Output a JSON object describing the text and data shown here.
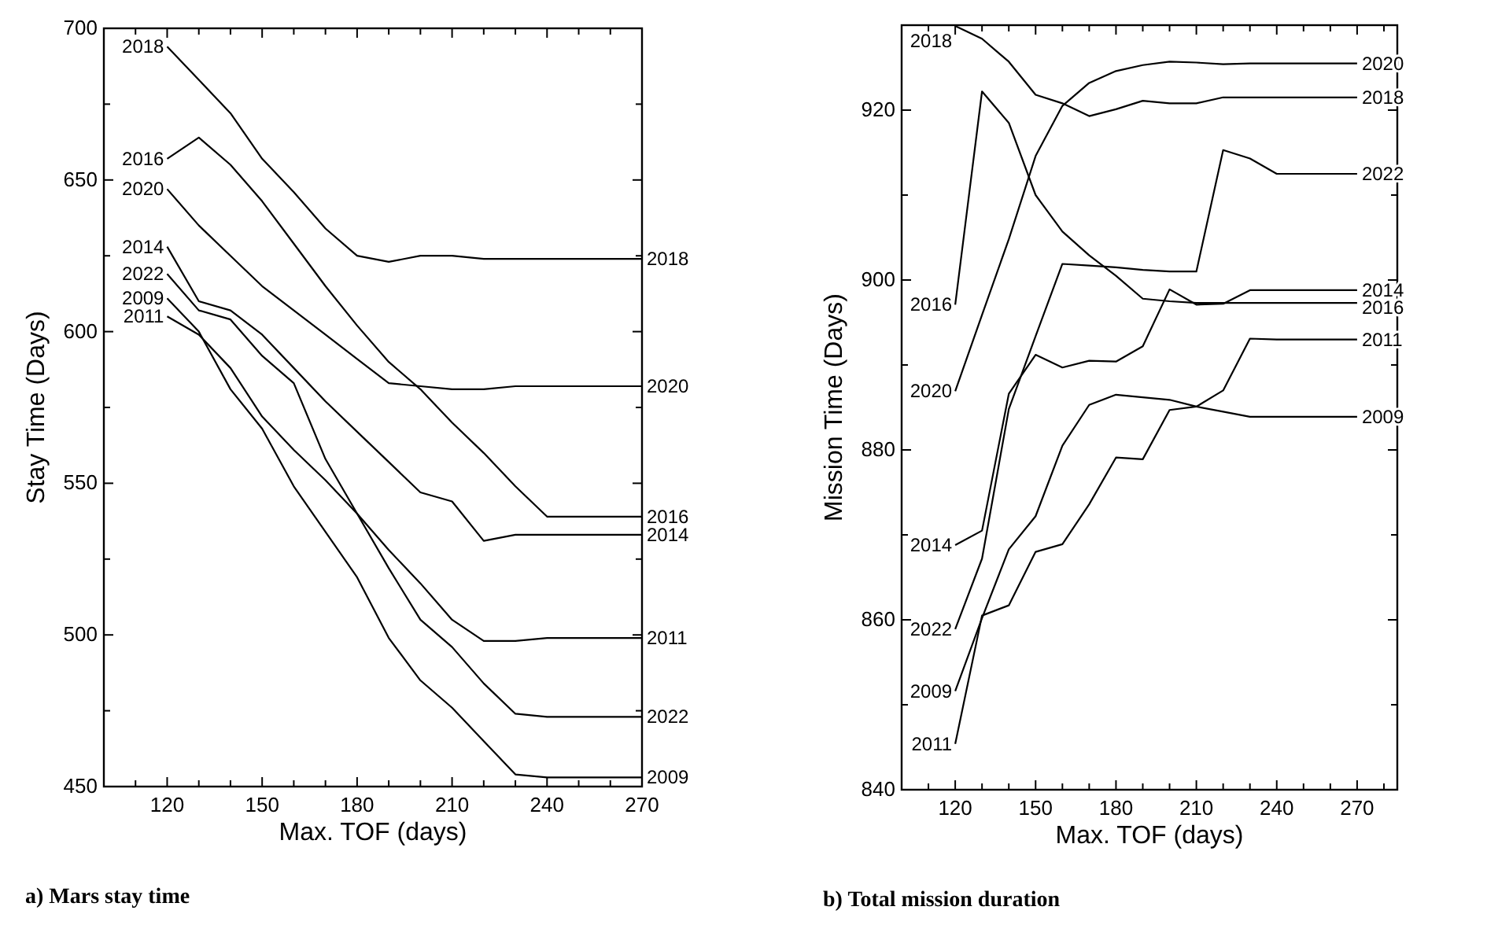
{
  "chart_data": [
    {
      "type": "line",
      "legend": "right",
      "title": "a) Mars stay time",
      "xlabel": "Max. TOF (days)",
      "ylabel": "Stay Time (Days)",
      "x": [
        120,
        130,
        140,
        150,
        160,
        170,
        180,
        190,
        200,
        210,
        220,
        230,
        240,
        250,
        260,
        270
      ],
      "xlim": [
        100,
        270
      ],
      "xticks": [
        {
          "value": 110,
          "label": null
        },
        120,
        {
          "value": 130,
          "label": null
        },
        {
          "value": 140,
          "label": null
        },
        150,
        {
          "value": 160,
          "label": null
        },
        {
          "value": 170,
          "label": null
        },
        180,
        {
          "value": 190,
          "label": null
        },
        {
          "value": 200,
          "label": null
        },
        210,
        {
          "value": 220,
          "label": null
        },
        {
          "value": 230,
          "label": null
        },
        240,
        {
          "value": 250,
          "label": null
        },
        {
          "value": 260,
          "label": null
        },
        270
      ],
      "ylim": [
        450,
        700
      ],
      "yticks": [
        450,
        {
          "value": 475,
          "label": null
        },
        500,
        {
          "value": 525,
          "label": null
        },
        550,
        {
          "value": 575,
          "label": null
        },
        600,
        {
          "value": 625,
          "label": null
        },
        650,
        {
          "value": 675,
          "label": null
        },
        700
      ],
      "series": [
        {
          "name": "2018",
          "color": "#000000",
          "values": [
            694,
            683,
            672,
            657,
            646,
            634,
            625,
            623,
            625,
            625,
            624,
            624,
            624,
            624,
            624,
            624
          ]
        },
        {
          "name": "2016",
          "color": "#000000",
          "values": [
            657,
            664,
            655,
            643,
            629,
            615,
            602,
            590,
            581,
            570,
            560,
            549,
            539,
            539,
            539,
            539
          ]
        },
        {
          "name": "2020",
          "color": "#000000",
          "values": [
            647,
            635,
            625,
            615,
            607,
            599,
            591,
            583,
            582,
            581,
            581,
            582,
            582,
            582,
            582,
            582
          ]
        },
        {
          "name": "2014",
          "color": "#000000",
          "values": [
            628,
            610,
            607,
            599,
            588,
            577,
            567,
            557,
            547,
            544,
            531,
            533,
            533,
            533,
            533,
            533
          ]
        },
        {
          "name": "2022",
          "color": "#000000",
          "values": [
            619,
            607,
            604,
            592,
            583,
            558,
            540,
            522,
            505,
            496,
            484,
            474,
            473,
            473,
            473,
            473
          ]
        },
        {
          "name": "2009",
          "color": "#000000",
          "values": [
            611,
            600,
            581,
            568,
            549,
            534,
            519,
            499,
            485,
            476,
            465,
            454,
            453,
            453,
            453,
            453
          ]
        },
        {
          "name": "2011",
          "color": "#000000",
          "values": [
            605,
            599,
            588,
            572,
            561,
            551,
            540,
            528,
            517,
            505,
            498,
            498,
            499,
            499,
            499,
            499
          ]
        }
      ]
    },
    {
      "type": "line",
      "legend": "right",
      "title": "b) Total mission duration",
      "xlabel": "Max. TOF (days)",
      "ylabel": "Mission Time (Days)",
      "x": [
        120,
        130,
        140,
        150,
        160,
        170,
        180,
        190,
        200,
        210,
        220,
        230,
        240,
        250,
        260,
        270
      ],
      "xlim": [
        100,
        285
      ],
      "xticks": [
        {
          "value": 110,
          "label": null
        },
        120,
        {
          "value": 130,
          "label": null
        },
        {
          "value": 140,
          "label": null
        },
        150,
        {
          "value": 160,
          "label": null
        },
        {
          "value": 170,
          "label": null
        },
        180,
        {
          "value": 190,
          "label": null
        },
        {
          "value": 200,
          "label": null
        },
        210,
        {
          "value": 220,
          "label": null
        },
        {
          "value": 230,
          "label": null
        },
        240,
        {
          "value": 250,
          "label": null
        },
        {
          "value": 260,
          "label": null
        },
        270,
        {
          "value": 280,
          "label": null
        }
      ],
      "ylim": [
        840,
        930
      ],
      "yticks": [
        840,
        {
          "value": 850,
          "label": null
        },
        860,
        {
          "value": 870,
          "label": null
        },
        880,
        {
          "value": 890,
          "label": null
        },
        900,
        {
          "value": 910,
          "label": null
        },
        920,
        {
          "value": 930,
          "label": null
        }
      ],
      "series": [
        {
          "name": "2018",
          "color": "#000000",
          "values": [
            929.9,
            928.4,
            925.7,
            921.8,
            920.8,
            919.3,
            920.1,
            921.1,
            920.8,
            920.8,
            921.5,
            921.5,
            921.5,
            921.5,
            921.5,
            921.5
          ]
        },
        {
          "name": "2020",
          "color": "#000000",
          "values": [
            886.9,
            895.9,
            904.8,
            914.6,
            920.5,
            923.2,
            924.6,
            925.3,
            925.7,
            925.6,
            925.4,
            925.5,
            925.5,
            925.5,
            925.5,
            925.5
          ]
        },
        {
          "name": "2016",
          "color": "#000000",
          "values": [
            897.1,
            922.2,
            918.5,
            910,
            905.7,
            902.9,
            900.5,
            897.8,
            897.5,
            897.3,
            897.3,
            897.3,
            897.3,
            897.3,
            897.3,
            897.3
          ]
        },
        {
          "name": "2022",
          "color": "#000000",
          "values": [
            858.9,
            867.2,
            884.8,
            893.4,
            901.9,
            901.7,
            901.5,
            901.2,
            901,
            901,
            915.3,
            914.3,
            912.5,
            912.5,
            912.5,
            912.5
          ]
        },
        {
          "name": "2014",
          "color": "#000000",
          "values": [
            868.8,
            870.5,
            886.6,
            891.2,
            889.7,
            890.5,
            890.4,
            892.2,
            898.9,
            897.1,
            897.2,
            898.8,
            898.8,
            898.8,
            898.8,
            898.8
          ]
        },
        {
          "name": "2009",
          "color": "#000000",
          "values": [
            851.6,
            860.2,
            868.3,
            872.2,
            880.5,
            885.3,
            886.5,
            886.2,
            885.9,
            885.1,
            884.5,
            883.9,
            883.9,
            883.9,
            883.9,
            883.9
          ]
        },
        {
          "name": "2011",
          "color": "#000000",
          "values": [
            845.4,
            860.5,
            861.7,
            868,
            868.9,
            873.6,
            879.1,
            878.9,
            884.7,
            885.1,
            887,
            893.1,
            893,
            893,
            893,
            893
          ]
        }
      ]
    }
  ]
}
